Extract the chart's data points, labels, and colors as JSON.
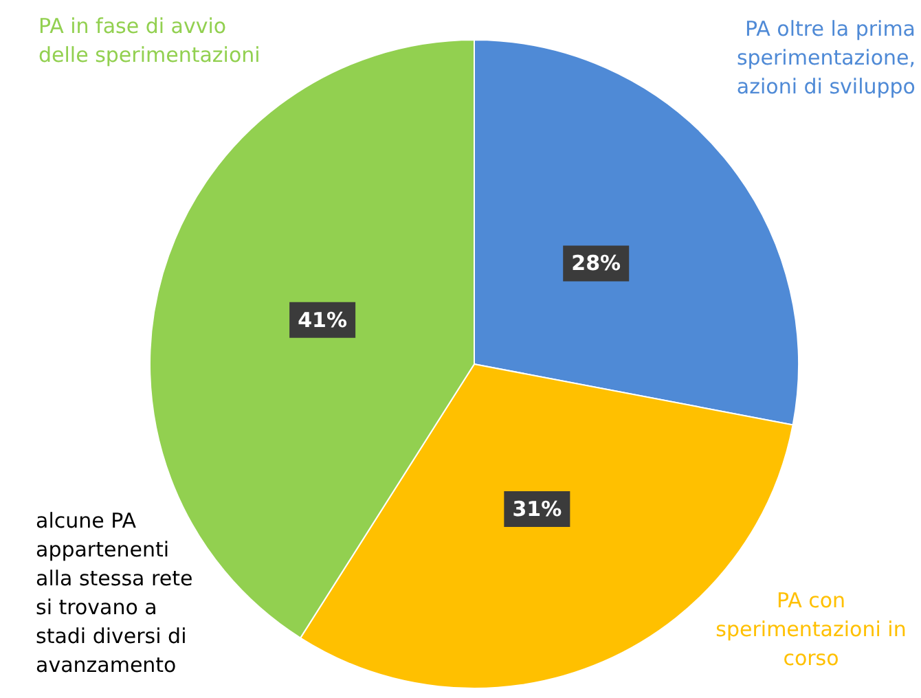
{
  "chart_data": {
    "type": "pie",
    "categories": [
      "PA oltre la prima sperimentazione, azioni di sviluppo",
      "PA con sperimentazioni in corso",
      "PA in fase di avvio delle sperimentazioni"
    ],
    "values": [
      28,
      31,
      41
    ],
    "colors": [
      "#4f8ad6",
      "#ffc000",
      "#92d050"
    ],
    "value_labels": [
      "28%",
      "31%",
      "41%"
    ],
    "annotations": [
      "alcune PA appartenenti alla stessa rete si trovano a stadi diversi di avanzamento"
    ]
  }
}
